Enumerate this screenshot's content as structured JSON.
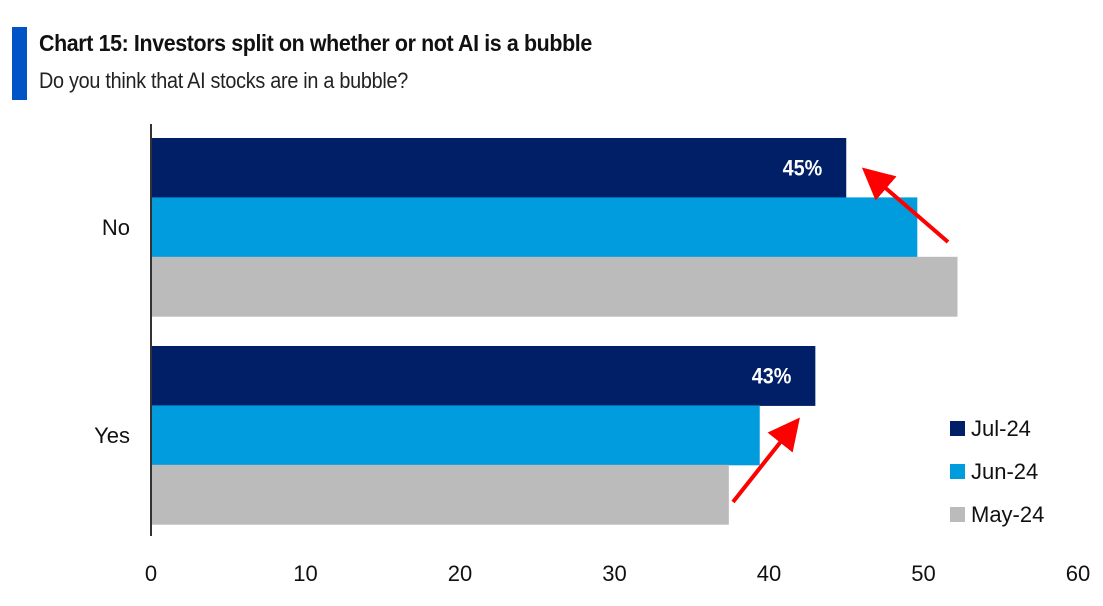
{
  "header": {
    "title": "Chart 15: Investors split on whether or not AI is a bubble",
    "subtitle": "Do you think that AI stocks are in a bubble?",
    "accent_color": "#0054C6"
  },
  "chart_data": {
    "type": "bar",
    "orientation": "horizontal",
    "title": "Chart 15: Investors split on whether or not AI is a bubble",
    "subtitle": "Do you think that AI stocks are in a bubble?",
    "categories": [
      "No",
      "Yes"
    ],
    "series": [
      {
        "name": "Jul-24",
        "color": "#001F66",
        "values": [
          45,
          43
        ],
        "labels": [
          "45%",
          "43%"
        ]
      },
      {
        "name": "Jun-24",
        "color": "#009CDE",
        "values": [
          49.6,
          39.4
        ],
        "labels": [
          null,
          null
        ]
      },
      {
        "name": "May-24",
        "color": "#BBBBBB",
        "values": [
          52.2,
          37.4
        ],
        "labels": [
          null,
          null
        ]
      }
    ],
    "xlim": [
      0,
      60
    ],
    "xticks": [
      0,
      10,
      20,
      30,
      40,
      50,
      60
    ],
    "xlabel": "",
    "ylabel": "",
    "grid": false,
    "legend": {
      "position": "bottom-right",
      "entries": [
        "Jul-24",
        "Jun-24",
        "May-24"
      ]
    },
    "annotations": [
      {
        "type": "arrow",
        "color": "#FF0000",
        "description": "arrow pointing to Jul-24 'No' bar end, indicating decline"
      },
      {
        "type": "arrow",
        "color": "#FF0000",
        "description": "arrow pointing to Jul-24 'Yes' bar end, indicating increase"
      }
    ]
  }
}
